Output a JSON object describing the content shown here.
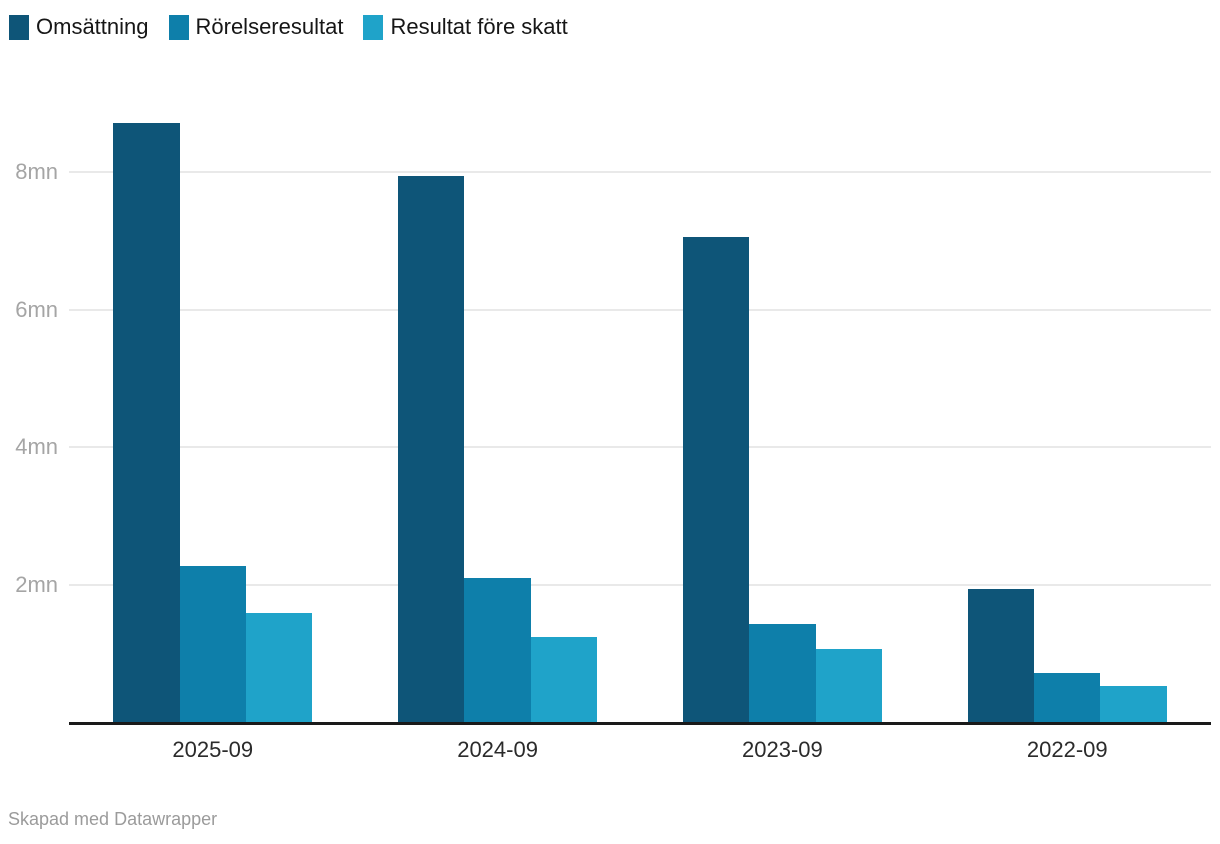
{
  "chart_data": {
    "type": "bar",
    "title": "",
    "categories": [
      "2025-09",
      "2024-09",
      "2023-09",
      "2022-09"
    ],
    "series": [
      {
        "name": "Omsättning",
        "color": "#0e5578",
        "values": [
          8.72,
          7.94,
          7.05,
          1.93
        ]
      },
      {
        "name": "Rörelseresultat",
        "color": "#0e7faa",
        "values": [
          2.27,
          2.09,
          1.43,
          0.72
        ]
      },
      {
        "name": "Resultat före skatt",
        "color": "#1fa3c9",
        "values": [
          1.59,
          1.24,
          1.06,
          0.52
        ]
      }
    ],
    "unit": "mn",
    "yticks": [
      {
        "value": 2,
        "label": "2mn"
      },
      {
        "value": 4,
        "label": "4mn"
      },
      {
        "value": 6,
        "label": "6mn"
      },
      {
        "value": 8,
        "label": "8mn"
      }
    ],
    "ylim": [
      0,
      9.4
    ],
    "xlabel": "",
    "ylabel": "",
    "grid": true,
    "legend_position": "top-left"
  },
  "footer": {
    "credit": "Skapad med Datawrapper"
  },
  "colors": {
    "background": "#ffffff",
    "gridline": "#e9e9e9",
    "axis_line": "#1a1a1a",
    "ytick_label": "#a5a5a5",
    "xtick_label": "#2b2b2b",
    "legend_label": "#161616",
    "footer_text": "#9b9b9b"
  }
}
